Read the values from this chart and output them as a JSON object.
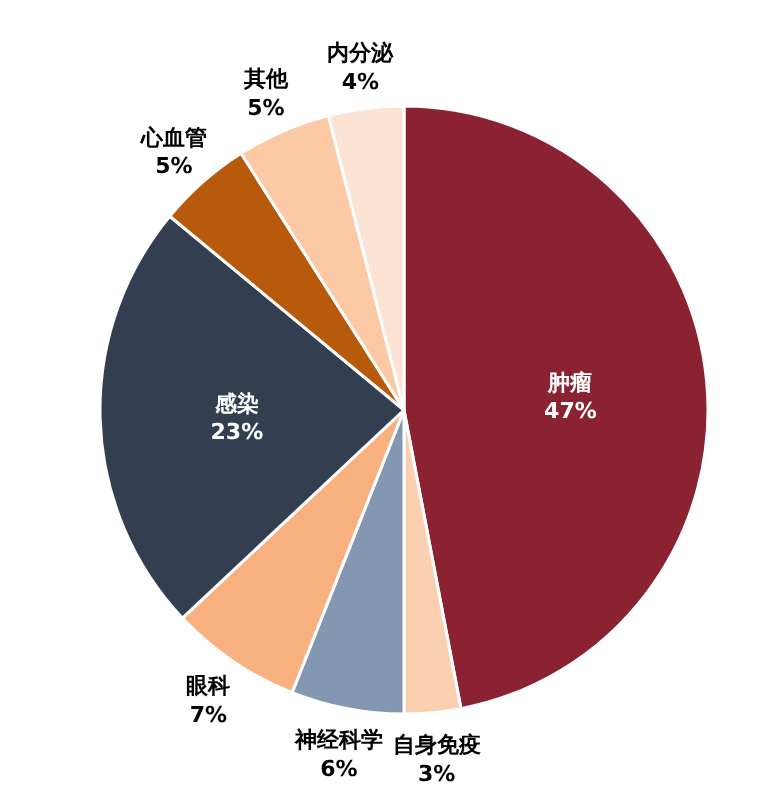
{
  "chart_data": {
    "type": "pie",
    "categories": [
      "肿瘤",
      "自身免疫",
      "神经科学",
      "眼科",
      "感染",
      "心血管",
      "其他",
      "内分泌"
    ],
    "values": [
      47,
      3,
      6,
      7,
      23,
      5,
      5,
      4
    ],
    "value_labels": [
      "47%",
      "3%",
      "6%",
      "7%",
      "23%",
      "5%",
      "5%",
      "4%"
    ],
    "colors": [
      "#8b2232",
      "#fbd0b0",
      "#8497b0",
      "#f9b07f",
      "#333f50",
      "#b85a0b",
      "#fcc9a5",
      "#fde3d3"
    ]
  }
}
